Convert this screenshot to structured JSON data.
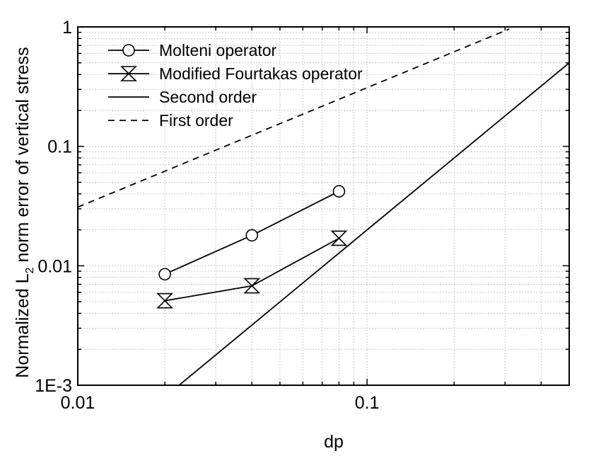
{
  "chart_data": {
    "type": "line",
    "xlabel": "dp",
    "ylabel": "Normalized L_2 norm error of vertical stress",
    "ylabel_parts": {
      "before": "Normalized L",
      "subscript": "2",
      "after": " norm error of vertical stress"
    },
    "xscale": "log",
    "yscale": "log",
    "xlim": [
      0.01,
      0.5
    ],
    "ylim": [
      0.001,
      1
    ],
    "x_tick_values": [
      0.01,
      0.1
    ],
    "x_tick_labels": [
      "0.01",
      "0.1"
    ],
    "y_tick_values": [
      0.001,
      0.01,
      0.1,
      1
    ],
    "y_tick_labels": [
      "1E-3",
      "0.01",
      "0.1",
      "1"
    ],
    "grid": true,
    "legend_position": "top-left",
    "series": [
      {
        "name": "Molteni operator",
        "style": "solid",
        "marker": "circle",
        "x": [
          0.02,
          0.04,
          0.08
        ],
        "y": [
          0.0085,
          0.018,
          0.042
        ]
      },
      {
        "name": "Modified Fourtakas operator",
        "style": "solid",
        "marker": "hourglass-triangle",
        "x": [
          0.02,
          0.04,
          0.08
        ],
        "y": [
          0.0051,
          0.0068,
          0.017
        ]
      },
      {
        "name": "Second order",
        "style": "solid",
        "marker": "none",
        "x": [
          0.0224,
          0.5
        ],
        "y": [
          0.001,
          0.5
        ]
      },
      {
        "name": "First order",
        "style": "dashed",
        "marker": "none",
        "x": [
          0.01,
          0.31
        ],
        "y": [
          0.031,
          0.96
        ]
      }
    ]
  }
}
